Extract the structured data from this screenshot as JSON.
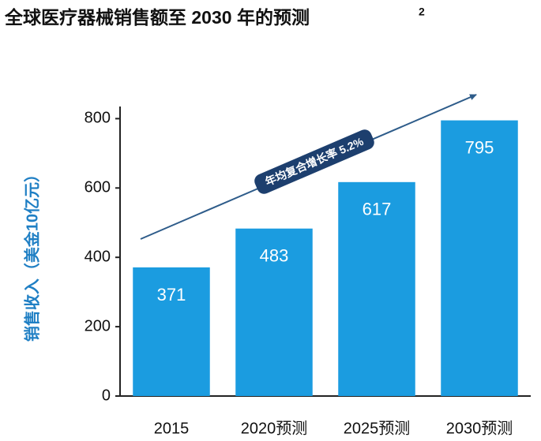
{
  "chart_data": {
    "type": "bar",
    "title": "全球医疗器械销售额至 2030 年的预测",
    "title_superscript": "2",
    "y_label": "销售收入（美金10亿元）",
    "annotation": "年均复合增长率 5.2%",
    "categories": [
      "2015",
      "2020预测",
      "2025预测",
      "2030预测"
    ],
    "values": [
      371,
      483,
      617,
      795
    ],
    "color": "#1b9ce0",
    "ylim": [
      0,
      835
    ],
    "yticks": [
      0,
      200,
      400,
      600,
      800
    ],
    "grid": false
  }
}
